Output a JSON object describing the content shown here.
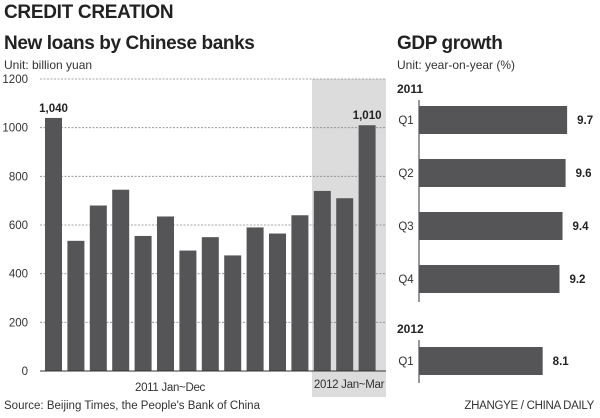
{
  "header": {
    "title": "CREDIT CREATION"
  },
  "footer": {
    "source": "Source: Beijing Times, the People's Bank of China",
    "credit": "ZHANGYE / CHINA DAILY"
  },
  "colors": {
    "bar": "#555558",
    "shade": "#dcdcdc",
    "grid": "#888888"
  },
  "chart_data": [
    {
      "type": "bar",
      "title": "New loans by Chinese banks",
      "subtitle": "Unit: billion yuan",
      "ylim": [
        0,
        1200
      ],
      "yticks": [
        "0",
        "200",
        "400",
        "600",
        "800",
        "1000",
        "1200"
      ],
      "grid": true,
      "group_labels": [
        "2011 Jan~Dec",
        "2012 Jan~Mar"
      ],
      "values": [
        1040,
        535,
        680,
        745,
        555,
        635,
        495,
        550,
        475,
        590,
        565,
        640,
        740,
        710,
        1010
      ],
      "data_labels": [
        "1,040",
        "",
        "",
        "",
        "",
        "",
        "",
        "",
        "",
        "",
        "",
        "",
        "",
        "",
        "1,010"
      ],
      "highlight": "2012 Jan~Mar"
    },
    {
      "type": "bar",
      "orientation": "horizontal",
      "title": "GDP growth",
      "subtitle": "Unit: year-on-year (%)",
      "groups": [
        {
          "label": "2011",
          "categories": [
            "Q1",
            "Q2",
            "Q3",
            "Q4"
          ],
          "values": [
            9.7,
            9.6,
            9.4,
            9.2
          ],
          "data_labels": [
            "9.7",
            "9.6",
            "9.4",
            "9.2"
          ]
        },
        {
          "label": "2012",
          "categories": [
            "Q1"
          ],
          "values": [
            8.1
          ],
          "data_labels": [
            "8.1"
          ]
        }
      ]
    }
  ]
}
